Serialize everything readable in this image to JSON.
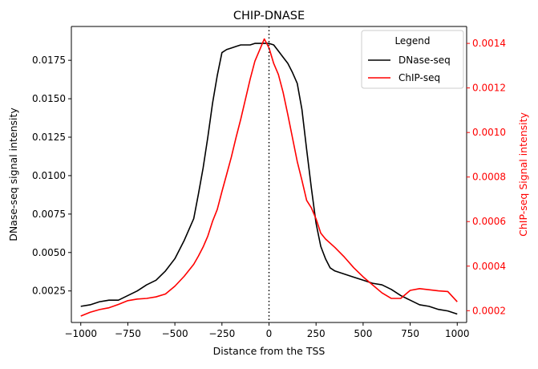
{
  "chart_data": {
    "type": "line",
    "title": "CHIP-DNASE",
    "xlabel": "Distance from the TSS",
    "ylabel_left": "DNase-seq signal intensity",
    "ylabel_right": "ChIP-seq Signal intensity",
    "xlim": [
      -1050,
      1050
    ],
    "ylim_left": [
      0.00045,
      0.0197
    ],
    "ylim_right": [
      0.000147,
      0.001476
    ],
    "xticks": [
      -1000,
      -750,
      -500,
      -250,
      0,
      250,
      500,
      750,
      1000
    ],
    "xtick_labels": [
      "−1000",
      "−750",
      "−500",
      "−250",
      "0",
      "250",
      "500",
      "750",
      "1000"
    ],
    "yticks_left": [
      0.0025,
      0.005,
      0.0075,
      0.01,
      0.0125,
      0.015,
      0.0175
    ],
    "ytick_labels_left": [
      "0.0025",
      "0.0050",
      "0.0075",
      "0.0100",
      "0.0125",
      "0.0150",
      "0.0175"
    ],
    "yticks_right": [
      0.0002,
      0.0004,
      0.0006,
      0.0008,
      0.001,
      0.0012,
      0.0014
    ],
    "ytick_labels_right": [
      "0.0002",
      "0.0004",
      "0.0006",
      "0.0008",
      "0.0010",
      "0.0012",
      "0.0014"
    ],
    "vline_x": 0,
    "legend": {
      "title": "Legend",
      "position": "top-right"
    },
    "grid": false,
    "series": [
      {
        "name": "DNase-seq",
        "axis": "left",
        "color": "#000000",
        "x": [
          -1000,
          -950,
          -900,
          -850,
          -800,
          -750,
          -700,
          -650,
          -600,
          -550,
          -500,
          -450,
          -400,
          -375,
          -350,
          -325,
          -300,
          -275,
          -250,
          -225,
          -200,
          -175,
          -150,
          -125,
          -100,
          -75,
          -50,
          -25,
          0,
          25,
          50,
          75,
          100,
          125,
          150,
          175,
          200,
          225,
          250,
          275,
          300,
          325,
          350,
          400,
          450,
          500,
          550,
          600,
          650,
          700,
          750,
          800,
          850,
          900,
          950,
          1000
        ],
        "y": [
          0.0015,
          0.0016,
          0.0018,
          0.0019,
          0.0019,
          0.0022,
          0.0025,
          0.0029,
          0.0032,
          0.0038,
          0.0046,
          0.0058,
          0.0072,
          0.0088,
          0.0105,
          0.0125,
          0.0147,
          0.0165,
          0.018,
          0.0182,
          0.0183,
          0.0184,
          0.0185,
          0.0185,
          0.0185,
          0.0186,
          0.0186,
          0.0186,
          0.0186,
          0.0185,
          0.0181,
          0.0177,
          0.0173,
          0.0167,
          0.016,
          0.0143,
          0.0117,
          0.0092,
          0.0069,
          0.0054,
          0.0046,
          0.004,
          0.0038,
          0.0036,
          0.0034,
          0.0032,
          0.003,
          0.0029,
          0.0026,
          0.0022,
          0.0019,
          0.0016,
          0.0015,
          0.0013,
          0.0012,
          0.001
        ]
      },
      {
        "name": "ChIP-seq",
        "axis": "right",
        "color": "#ff0000",
        "x": [
          -1000,
          -950,
          -900,
          -850,
          -800,
          -750,
          -700,
          -650,
          -600,
          -550,
          -500,
          -450,
          -400,
          -375,
          -350,
          -325,
          -300,
          -275,
          -250,
          -225,
          -200,
          -175,
          -150,
          -125,
          -100,
          -75,
          -50,
          -25,
          0,
          25,
          50,
          75,
          100,
          125,
          150,
          175,
          200,
          225,
          250,
          275,
          300,
          350,
          400,
          450,
          500,
          550,
          600,
          650,
          700,
          750,
          800,
          850,
          900,
          950,
          1000
        ],
        "y": [
          0.000176,
          0.000193,
          0.000205,
          0.000213,
          0.000228,
          0.000245,
          0.000252,
          0.000255,
          0.000262,
          0.000275,
          0.00031,
          0.000355,
          0.000408,
          0.000445,
          0.000486,
          0.000535,
          0.000601,
          0.000654,
          0.000735,
          0.000812,
          0.00089,
          0.000978,
          0.00106,
          0.00115,
          0.00124,
          0.00132,
          0.00137,
          0.00142,
          0.00138,
          0.00131,
          0.00126,
          0.00118,
          0.00108,
          0.000975,
          0.00087,
          0.000785,
          0.000695,
          0.000662,
          0.000612,
          0.000548,
          0.000522,
          0.000484,
          0.000441,
          0.000393,
          0.000352,
          0.000316,
          0.00028,
          0.000255,
          0.000255,
          0.000291,
          0.000299,
          0.000294,
          0.000289,
          0.000286,
          0.00024
        ]
      }
    ]
  }
}
